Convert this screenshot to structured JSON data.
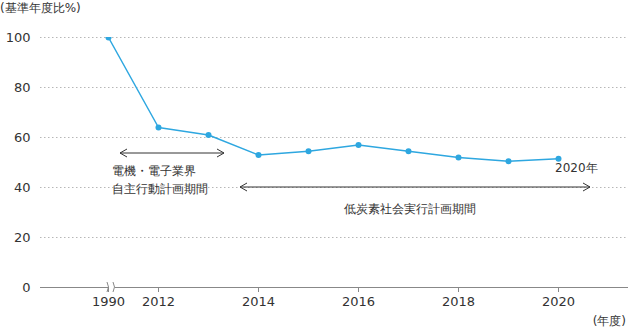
{
  "chart_data": {
    "type": "line",
    "y_label": "(基準年度比%)",
    "x_label": "(年度)",
    "categories": [
      "1990",
      "2012",
      null,
      "2014",
      null,
      "2016",
      null,
      "2018",
      null,
      "2020"
    ],
    "values": [
      100,
      64,
      61,
      53,
      54.5,
      57,
      54.5,
      52,
      50.5,
      51.5
    ],
    "color": "#2ea7e0",
    "marker": "circle",
    "line_style": "solid",
    "ylim": [
      0,
      100
    ],
    "yticks": [
      0,
      20,
      40,
      60,
      80,
      100
    ],
    "grid": true,
    "annotations": [
      {
        "text": "電機・電子業界\n自主行動計画期間"
      },
      {
        "text": "低炭素社会実行計画期間"
      },
      {
        "text": "2020年"
      }
    ]
  }
}
